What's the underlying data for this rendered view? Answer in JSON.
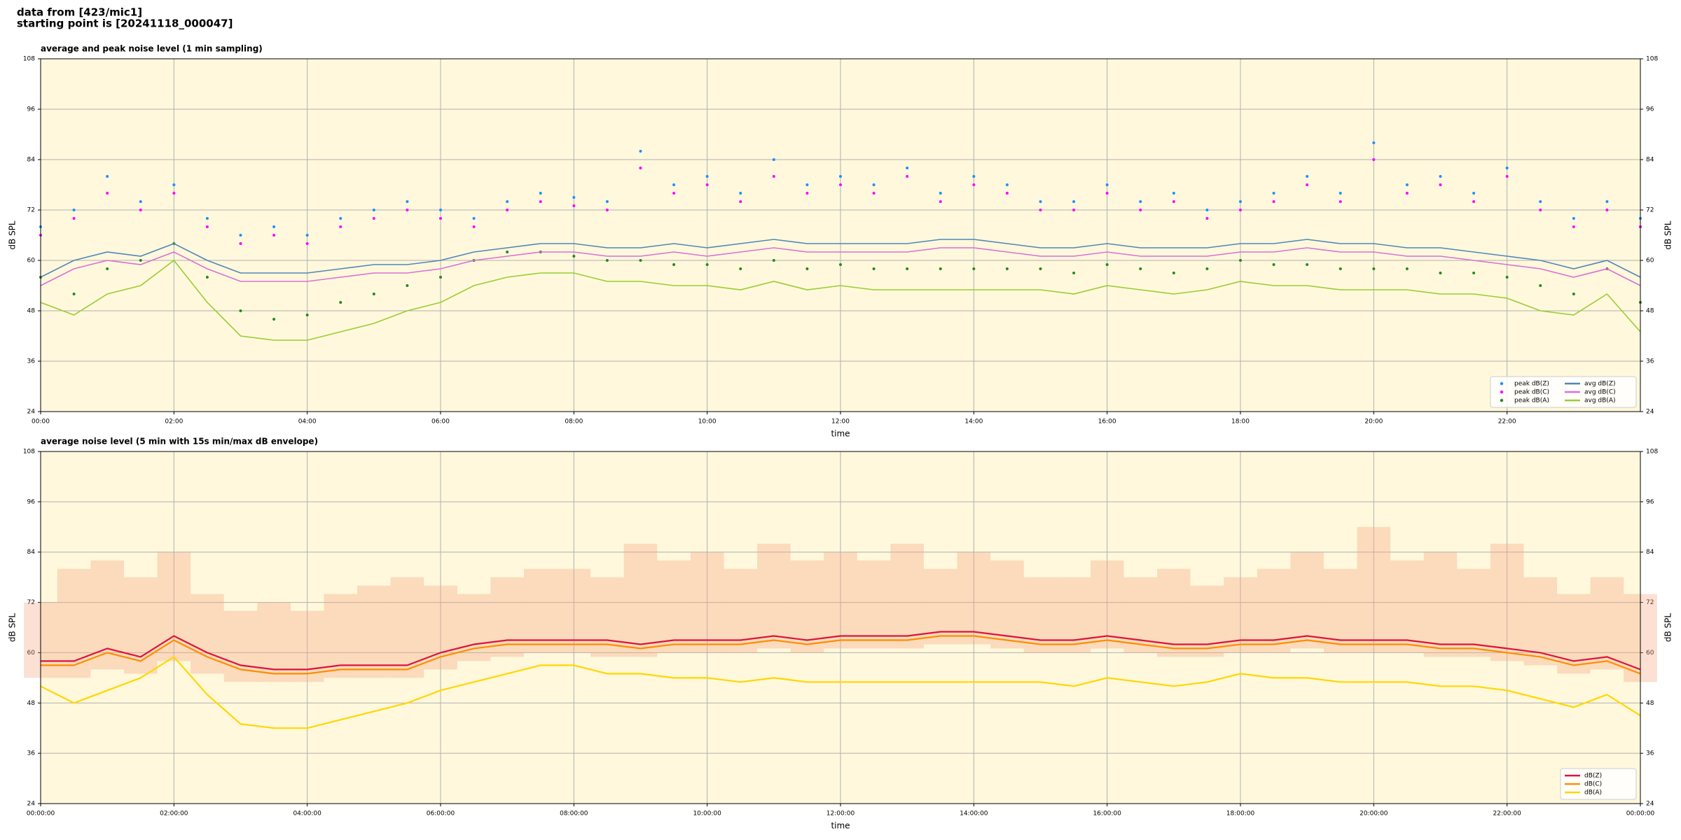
{
  "header": [
    "data from [423/mic1]",
    "starting point is [20241118_000047]"
  ],
  "chart_data": [
    {
      "type": "line",
      "title": "average and peak noise level (1 min sampling)",
      "xlabel": "time",
      "ylabel": "dB SPL",
      "background": "#fff8dc",
      "grid": true,
      "legend": "lower right",
      "legend_columns": 2,
      "xlim": [
        0,
        24
      ],
      "ylim": [
        24,
        108
      ],
      "yticks": [
        24,
        36,
        48,
        60,
        72,
        84,
        96,
        108
      ],
      "xticks": [
        {
          "value": 0,
          "label": "00:00"
        },
        {
          "value": 2,
          "label": "02:00"
        },
        {
          "value": 4,
          "label": "04:00"
        },
        {
          "value": 6,
          "label": "06:00"
        },
        {
          "value": 8,
          "label": "08:00"
        },
        {
          "value": 10,
          "label": "10:00"
        },
        {
          "value": 12,
          "label": "12:00"
        },
        {
          "value": 14,
          "label": "14:00"
        },
        {
          "value": 16,
          "label": "16:00"
        },
        {
          "value": 18,
          "label": "18:00"
        },
        {
          "value": 20,
          "label": "20:00"
        },
        {
          "value": 22,
          "label": "22:00"
        }
      ],
      "x": [
        0,
        0.5,
        1,
        1.5,
        2,
        2.5,
        3,
        3.5,
        4,
        4.5,
        5,
        5.5,
        6,
        6.5,
        7,
        7.5,
        8,
        8.5,
        9,
        9.5,
        10,
        10.5,
        11,
        11.5,
        12,
        12.5,
        13,
        13.5,
        14,
        14.5,
        15,
        15.5,
        16,
        16.5,
        17,
        17.5,
        18,
        18.5,
        19,
        19.5,
        20,
        20.5,
        21,
        21.5,
        22,
        22.5,
        23,
        23.5,
        24
      ],
      "series": [
        {
          "name": "peak dB(Z)",
          "kind": "dots",
          "color": "#1e90ff",
          "values": [
            68,
            72,
            80,
            74,
            78,
            70,
            66,
            68,
            66,
            70,
            72,
            74,
            72,
            70,
            74,
            76,
            75,
            74,
            86,
            78,
            80,
            76,
            84,
            78,
            80,
            78,
            82,
            76,
            80,
            78,
            74,
            74,
            78,
            74,
            76,
            72,
            74,
            76,
            80,
            76,
            88,
            78,
            80,
            76,
            82,
            74,
            70,
            74,
            70
          ]
        },
        {
          "name": "peak dB(C)",
          "kind": "dots",
          "color": "#ff00ff",
          "values": [
            66,
            70,
            76,
            72,
            76,
            68,
            64,
            66,
            64,
            68,
            70,
            72,
            70,
            68,
            72,
            74,
            73,
            72,
            82,
            76,
            78,
            74,
            80,
            76,
            78,
            76,
            80,
            74,
            78,
            76,
            72,
            72,
            76,
            72,
            74,
            70,
            72,
            74,
            78,
            74,
            84,
            76,
            78,
            74,
            80,
            72,
            68,
            72,
            68
          ]
        },
        {
          "name": "peak dB(A)",
          "kind": "dots",
          "color": "#228b22",
          "values": [
            56,
            52,
            58,
            60,
            64,
            56,
            48,
            46,
            47,
            50,
            52,
            54,
            56,
            60,
            62,
            62,
            61,
            60,
            60,
            59,
            59,
            58,
            60,
            58,
            59,
            58,
            58,
            58,
            58,
            58,
            58,
            57,
            59,
            58,
            57,
            58,
            60,
            59,
            59,
            58,
            58,
            58,
            57,
            57,
            56,
            54,
            52,
            58,
            50
          ]
        },
        {
          "name": "avg dB(Z)",
          "kind": "line",
          "color": "#4f87b8",
          "values": [
            56,
            60,
            62,
            61,
            64,
            60,
            57,
            57,
            57,
            58,
            59,
            59,
            60,
            62,
            63,
            64,
            64,
            63,
            63,
            64,
            63,
            64,
            65,
            64,
            64,
            64,
            64,
            65,
            65,
            64,
            63,
            63,
            64,
            63,
            63,
            63,
            64,
            64,
            65,
            64,
            64,
            63,
            63,
            62,
            61,
            60,
            58,
            60,
            56
          ]
        },
        {
          "name": "avg dB(C)",
          "kind": "line",
          "color": "#da70d6",
          "values": [
            54,
            58,
            60,
            59,
            62,
            58,
            55,
            55,
            55,
            56,
            57,
            57,
            58,
            60,
            61,
            62,
            62,
            61,
            61,
            62,
            61,
            62,
            63,
            62,
            62,
            62,
            62,
            63,
            63,
            62,
            61,
            61,
            62,
            61,
            61,
            61,
            62,
            62,
            63,
            62,
            62,
            61,
            61,
            60,
            59,
            58,
            56,
            58,
            54
          ]
        },
        {
          "name": "avg dB(A)",
          "kind": "line",
          "color": "#9acd32",
          "values": [
            50,
            47,
            52,
            54,
            60,
            50,
            42,
            41,
            41,
            43,
            45,
            48,
            50,
            54,
            56,
            57,
            57,
            55,
            55,
            54,
            54,
            53,
            55,
            53,
            54,
            53,
            53,
            53,
            53,
            53,
            53,
            52,
            54,
            53,
            52,
            53,
            55,
            54,
            54,
            53,
            53,
            53,
            52,
            52,
            51,
            48,
            47,
            52,
            43
          ]
        }
      ]
    },
    {
      "type": "line",
      "title": "average noise level (5 min with 15s min/max dB envelope)",
      "xlabel": "time",
      "ylabel": "dB SPL",
      "background": "#fff8dc",
      "grid": true,
      "legend": "lower right",
      "legend_columns": 1,
      "xlim": [
        0,
        24
      ],
      "ylim": [
        24,
        108
      ],
      "yticks": [
        24,
        36,
        48,
        60,
        72,
        84,
        96,
        108
      ],
      "xticks": [
        {
          "value": 0,
          "label": "00:00:00"
        },
        {
          "value": 2,
          "label": "02:00:00"
        },
        {
          "value": 4,
          "label": "04:00:00"
        },
        {
          "value": 6,
          "label": "06:00:00"
        },
        {
          "value": 8,
          "label": "08:00:00"
        },
        {
          "value": 10,
          "label": "10:00:00"
        },
        {
          "value": 12,
          "label": "12:00:00"
        },
        {
          "value": 14,
          "label": "14:00:00"
        },
        {
          "value": 16,
          "label": "16:00:00"
        },
        {
          "value": 18,
          "label": "18:00:00"
        },
        {
          "value": 20,
          "label": "20:00:00"
        },
        {
          "value": 22,
          "label": "22:00:00"
        },
        {
          "value": 24,
          "label": "00:00:00"
        }
      ],
      "x": [
        0,
        0.5,
        1,
        1.5,
        2,
        2.5,
        3,
        3.5,
        4,
        4.5,
        5,
        5.5,
        6,
        6.5,
        7,
        7.5,
        8,
        8.5,
        9,
        9.5,
        10,
        10.5,
        11,
        11.5,
        12,
        12.5,
        13,
        13.5,
        14,
        14.5,
        15,
        15.5,
        16,
        16.5,
        17,
        17.5,
        18,
        18.5,
        19,
        19.5,
        20,
        20.5,
        21,
        21.5,
        22,
        22.5,
        23,
        23.5,
        24
      ],
      "envelope": {
        "color": "#f4a582",
        "min": [
          54,
          54,
          56,
          55,
          58,
          55,
          53,
          53,
          53,
          54,
          54,
          54,
          56,
          58,
          59,
          60,
          60,
          59,
          59,
          60,
          60,
          60,
          61,
          60,
          61,
          61,
          61,
          62,
          62,
          61,
          60,
          60,
          61,
          60,
          59,
          59,
          60,
          60,
          61,
          60,
          60,
          60,
          59,
          59,
          58,
          57,
          55,
          56,
          53
        ],
        "max": [
          72,
          80,
          82,
          78,
          84,
          74,
          70,
          72,
          70,
          74,
          76,
          78,
          76,
          74,
          78,
          80,
          80,
          78,
          86,
          82,
          84,
          80,
          86,
          82,
          84,
          82,
          86,
          80,
          84,
          82,
          78,
          78,
          82,
          78,
          80,
          76,
          78,
          80,
          84,
          80,
          90,
          82,
          84,
          80,
          86,
          78,
          74,
          78,
          74
        ]
      },
      "series": [
        {
          "name": "dB(Z)",
          "kind": "line",
          "color": "#dc143c",
          "values": [
            58,
            58,
            61,
            59,
            64,
            60,
            57,
            56,
            56,
            57,
            57,
            57,
            60,
            62,
            63,
            63,
            63,
            63,
            62,
            63,
            63,
            63,
            64,
            63,
            64,
            64,
            64,
            65,
            65,
            64,
            63,
            63,
            64,
            63,
            62,
            62,
            63,
            63,
            64,
            63,
            63,
            63,
            62,
            62,
            61,
            60,
            58,
            59,
            56
          ]
        },
        {
          "name": "dB(C)",
          "kind": "line",
          "color": "#ff8c00",
          "values": [
            57,
            57,
            60,
            58,
            63,
            59,
            56,
            55,
            55,
            56,
            56,
            56,
            59,
            61,
            62,
            62,
            62,
            62,
            61,
            62,
            62,
            62,
            63,
            62,
            63,
            63,
            63,
            64,
            64,
            63,
            62,
            62,
            63,
            62,
            61,
            61,
            62,
            62,
            63,
            62,
            62,
            62,
            61,
            61,
            60,
            59,
            57,
            58,
            55
          ]
        },
        {
          "name": "dB(A)",
          "kind": "line",
          "color": "#ffd700",
          "values": [
            52,
            48,
            51,
            54,
            59,
            50,
            43,
            42,
            42,
            44,
            46,
            48,
            51,
            53,
            55,
            57,
            57,
            55,
            55,
            54,
            54,
            53,
            54,
            53,
            53,
            53,
            53,
            53,
            53,
            53,
            53,
            52,
            54,
            53,
            52,
            53,
            55,
            54,
            54,
            53,
            53,
            53,
            52,
            52,
            51,
            49,
            47,
            50,
            45
          ]
        }
      ]
    }
  ]
}
